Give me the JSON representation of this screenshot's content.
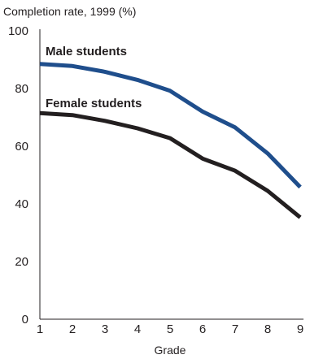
{
  "chart_data": {
    "type": "line",
    "ylabel": "Completion rate, 1999 (%)",
    "xlabel": "Grade",
    "x": [
      1,
      2,
      3,
      4,
      5,
      6,
      7,
      8,
      9
    ],
    "xlim": [
      1,
      9
    ],
    "ylim": [
      0,
      100
    ],
    "yticks": [
      0,
      20,
      40,
      60,
      80,
      100
    ],
    "grid": false,
    "legend": "inline labels",
    "series": [
      {
        "name": "Male students",
        "color": "#1f4e8c",
        "values": [
          88.5,
          87.8,
          85.8,
          83.0,
          79.2,
          72.0,
          66.5,
          57.5,
          45.8
        ]
      },
      {
        "name": "Female students",
        "color": "#231f20",
        "values": [
          71.5,
          70.8,
          68.8,
          66.2,
          62.8,
          55.7,
          51.5,
          44.5,
          35.3
        ]
      }
    ]
  }
}
